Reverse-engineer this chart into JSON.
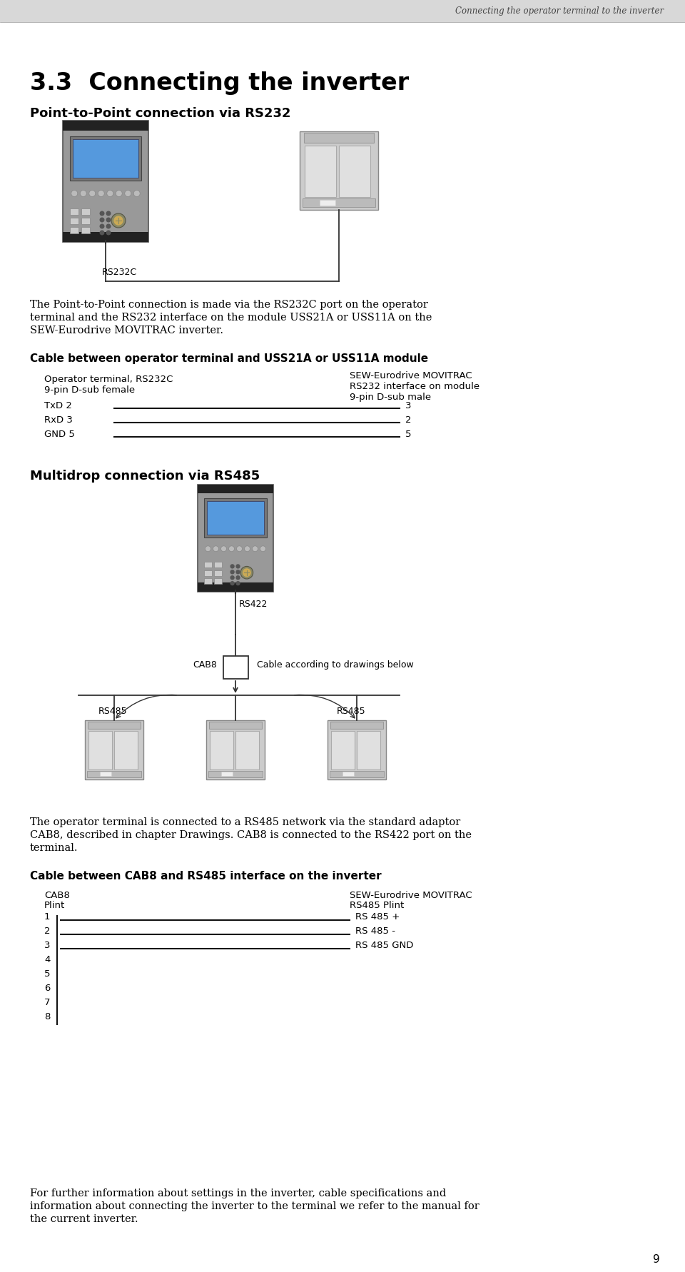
{
  "page_title": "Connecting the operator terminal to the inverter",
  "section_title": "3.3  Connecting the inverter",
  "sub1_title": "Point-to-Point connection via RS232",
  "label_rs232c": "RS232C",
  "para1_line1": "The Point-to-Point connection is made via the RS232C port on the operator",
  "para1_line2": "terminal and the RS232 interface on the module USS21A or USS11A on the",
  "para1_line3": "SEW-Eurodrive MOVITRAC inverter.",
  "cable_title": "Cable between operator terminal and USS21A or USS11A module",
  "left_label1": "Operator terminal, RS232C",
  "left_label2": "9-pin D-sub female",
  "right_label1": "SEW-Eurodrive MOVITRAC",
  "right_label2": "RS232 interface on module",
  "right_label3": "9-pin D-sub male",
  "wire1_left": "TxD 2",
  "wire1_right": "3",
  "wire2_left": "RxD 3",
  "wire2_right": "2",
  "wire3_left": "GND 5",
  "wire3_right": "5",
  "sub2_title": "Multidrop connection via RS485",
  "label_rs422": "RS422",
  "label_cab8": "CAB8",
  "label_cable_below": "Cable according to drawings below",
  "label_rs485_left": "RS485",
  "label_rs485_right": "RS485",
  "para2_line1": "The operator terminal is connected to a RS485 network via the standard adaptor",
  "para2_line2": "CAB8, described in chapter Drawings. CAB8 is connected to the RS422 port on the",
  "para2_line3": "terminal.",
  "cable2_title": "Cable between CAB8 and RS485 interface on the inverter",
  "cab8_col1_line1": "CAB8",
  "cab8_col1_line2": "Plint",
  "right2_label1": "SEW-Eurodrive MOVITRAC",
  "right2_label2": "RS485 Plint",
  "pins_left": [
    "1",
    "2",
    "3",
    "4",
    "5",
    "6",
    "7",
    "8"
  ],
  "wire_a_right": "RS 485 +",
  "wire_b_right": "RS 485 -",
  "wire_c_right": "RS 485 GND",
  "para3_line1": "For further information about settings in the inverter, cable specifications and",
  "para3_line2": "information about connecting the inverter to the terminal we refer to the manual for",
  "para3_line3": "the current inverter.",
  "page_number": "9",
  "bg_color": "#ffffff",
  "text_color": "#000000",
  "header_bg": "#d8d8d8",
  "device_body": "#aaaaaa",
  "device_dark": "#555555",
  "screen_color": "#5599dd",
  "inv_body": "#cccccc",
  "inv_top": "#bbbbbb",
  "wire_color": "#111111"
}
